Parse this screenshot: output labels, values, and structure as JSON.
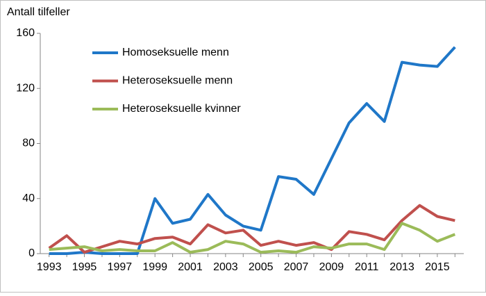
{
  "chart_data": {
    "type": "line",
    "y_axis_label": "Antall tilfeller",
    "categories": [
      "1993",
      null,
      "1995",
      null,
      "1997",
      null,
      "1999",
      null,
      "2001",
      null,
      "2003",
      null,
      "2005",
      null,
      "2007",
      null,
      "2009",
      null,
      "2011",
      null,
      "2013",
      null,
      "2015",
      null
    ],
    "series": [
      {
        "name": "Homoseksuelle menn",
        "color": "#1f77c8",
        "values": [
          0,
          0,
          1,
          0,
          0,
          0,
          40,
          22,
          25,
          43,
          28,
          20,
          17,
          56,
          54,
          43,
          69,
          95,
          109,
          96,
          139,
          137,
          136,
          150
        ]
      },
      {
        "name": "Heteroseksuelle menn",
        "color": "#c0504d",
        "values": [
          4,
          13,
          1,
          5,
          9,
          7,
          11,
          12,
          7,
          21,
          15,
          17,
          6,
          9,
          6,
          8,
          3,
          16,
          14,
          10,
          24,
          35,
          27,
          24
        ]
      },
      {
        "name": "Heteroseksuelle kvinner",
        "color": "#9bbb59",
        "values": [
          3,
          4,
          5,
          2,
          3,
          2,
          2,
          8,
          1,
          3,
          9,
          7,
          1,
          2,
          1,
          5,
          4,
          7,
          7,
          3,
          22,
          17,
          9,
          14
        ]
      }
    ],
    "ylim": [
      0,
      160
    ],
    "yticks": [
      0,
      40,
      80,
      120,
      160
    ],
    "grid": false
  }
}
